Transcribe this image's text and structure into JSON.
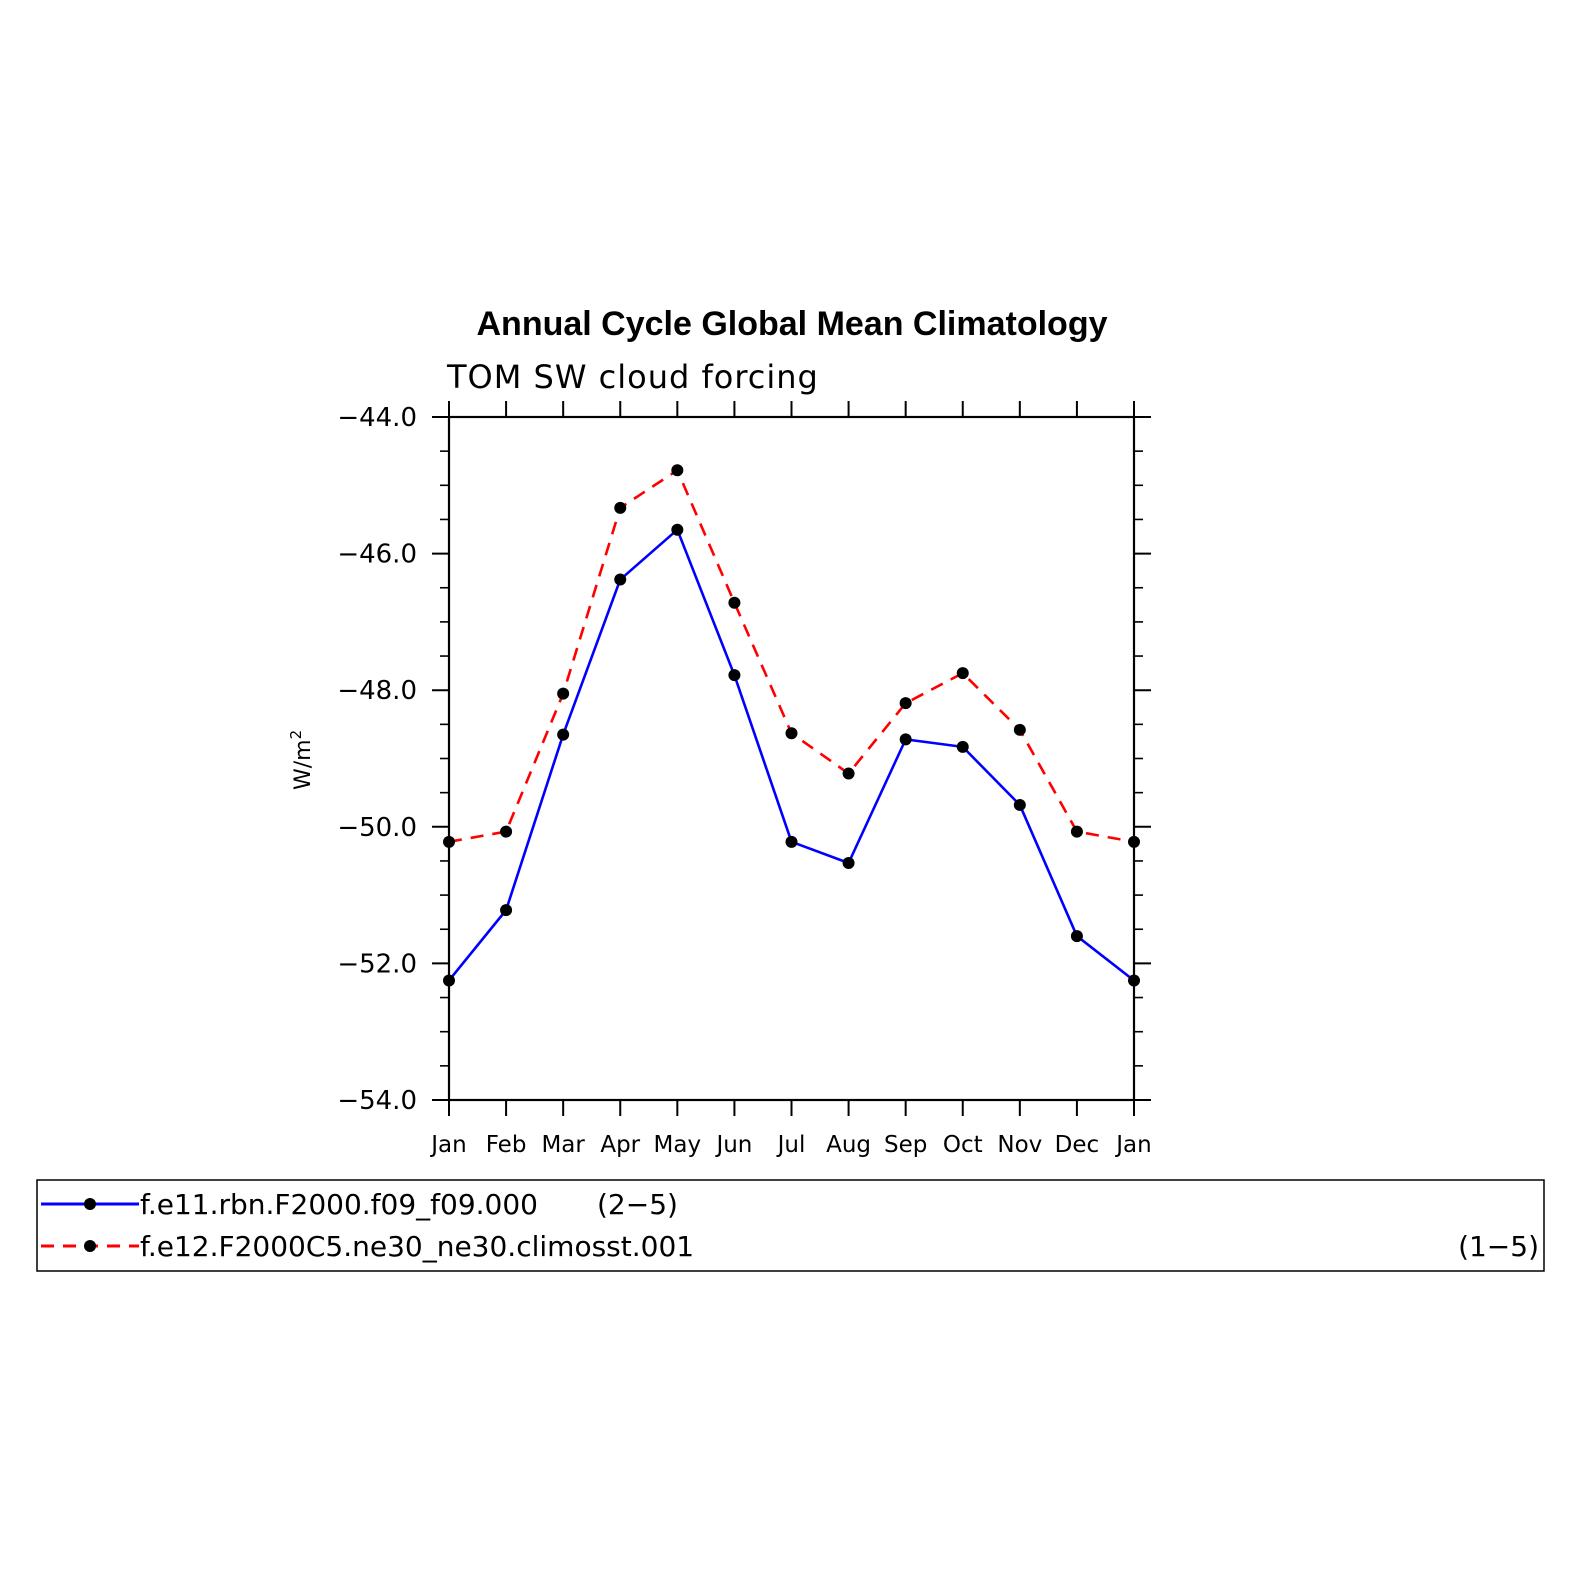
{
  "chart_data": {
    "type": "line",
    "title": "Annual Cycle Global Mean Climatology",
    "subtitle": "TOM SW cloud forcing",
    "ylabel": "W/m",
    "ylabel_sup": "2",
    "x": [
      "Jan",
      "Feb",
      "Mar",
      "Apr",
      "May",
      "Jun",
      "Jul",
      "Aug",
      "Sep",
      "Oct",
      "Nov",
      "Dec",
      "Jan"
    ],
    "ylim": [
      -54.0,
      -44.0
    ],
    "yticks": [
      -54.0,
      -52.0,
      -50.0,
      -48.0,
      -46.0,
      -44.0
    ],
    "ytick_labels": [
      "−54.0",
      "−52.0",
      "−50.0",
      "−48.0",
      "−46.0",
      "−44.0"
    ],
    "grid": false,
    "legend_position": "bottom",
    "series": [
      {
        "name": "f.e11.rbn.F2000.f09_f09.000",
        "legend_suffix": "(2−5)",
        "color": "#0000ff",
        "dash": "solid",
        "values": [
          -52.25,
          -51.22,
          -48.65,
          -46.38,
          -45.65,
          -47.78,
          -50.22,
          -50.53,
          -48.72,
          -48.83,
          -49.68,
          -51.6,
          -52.25
        ]
      },
      {
        "name": "f.e12.F2000C5.ne30_ne30.climosst.001",
        "legend_suffix": "(1−5)",
        "color": "#ff0000",
        "dash": "dashed",
        "values": [
          -50.22,
          -50.07,
          -48.05,
          -45.33,
          -44.78,
          -46.72,
          -48.63,
          -49.22,
          -48.19,
          -47.75,
          -48.58,
          -50.07,
          -50.22
        ]
      }
    ]
  }
}
